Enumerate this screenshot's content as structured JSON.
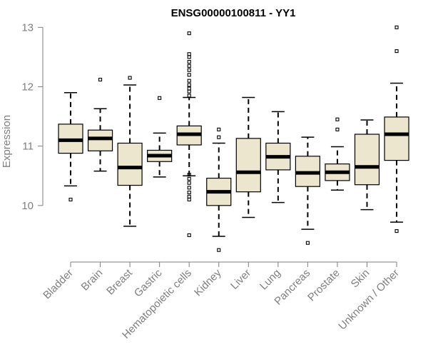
{
  "chart_data": {
    "type": "boxplot",
    "title": "ENSG00000100811 - YY1",
    "xlabel": "",
    "ylabel": "Expression",
    "ylim": [
      9.12,
      13.1
    ],
    "yticks": [
      10,
      11,
      12,
      13
    ],
    "box_fill": "#ede6cf",
    "categories": [
      "Bladder",
      "Brain",
      "Breast",
      "Gastric",
      "Hematopoietic cells",
      "Kidney",
      "Liver",
      "Lung",
      "Pancreas",
      "Prostate",
      "Skin",
      "Unknown / Other"
    ],
    "series": [
      {
        "name": "Bladder",
        "whisker_low": 10.33,
        "q1": 10.88,
        "median": 11.1,
        "q3": 11.37,
        "whisker_high": 11.9,
        "outliers": [
          10.1
        ]
      },
      {
        "name": "Brain",
        "whisker_low": 10.58,
        "q1": 10.92,
        "median": 11.13,
        "q3": 11.27,
        "whisker_high": 11.63,
        "outliers": [
          12.12
        ]
      },
      {
        "name": "Breast",
        "whisker_low": 9.65,
        "q1": 10.34,
        "median": 10.64,
        "q3": 11.05,
        "whisker_high": 12.03,
        "outliers": [
          12.15
        ]
      },
      {
        "name": "Gastric",
        "whisker_low": 10.48,
        "q1": 10.74,
        "median": 10.84,
        "q3": 10.93,
        "whisker_high": 11.22,
        "outliers": [
          11.81
        ]
      },
      {
        "name": "Hematopoietic cells",
        "whisker_low": 10.5,
        "q1": 11.02,
        "median": 11.2,
        "q3": 11.34,
        "whisker_high": 11.82,
        "outliers": [
          9.5,
          10.1,
          10.15,
          10.22,
          10.3,
          10.38,
          10.45,
          10.52,
          11.85,
          11.92,
          11.97,
          12.03,
          12.1,
          12.2,
          12.28,
          12.35,
          12.42,
          12.5,
          12.55,
          12.9
        ]
      },
      {
        "name": "Kidney",
        "whisker_low": 9.48,
        "q1": 10.0,
        "median": 10.23,
        "q3": 10.46,
        "whisker_high": 11.05,
        "outliers": [
          9.25,
          11.15,
          11.28
        ]
      },
      {
        "name": "Liver",
        "whisker_low": 9.8,
        "q1": 10.23,
        "median": 10.56,
        "q3": 11.13,
        "whisker_high": 11.82,
        "outliers": []
      },
      {
        "name": "Lung",
        "whisker_low": 10.05,
        "q1": 10.6,
        "median": 10.82,
        "q3": 11.05,
        "whisker_high": 11.58,
        "outliers": []
      },
      {
        "name": "Pancreas",
        "whisker_low": 9.6,
        "q1": 10.32,
        "median": 10.55,
        "q3": 10.83,
        "whisker_high": 11.15,
        "outliers": [
          9.37
        ]
      },
      {
        "name": "Prostate",
        "whisker_low": 10.26,
        "q1": 10.42,
        "median": 10.56,
        "q3": 10.7,
        "whisker_high": 10.99,
        "outliers": [
          11.28,
          11.45
        ]
      },
      {
        "name": "Skin",
        "whisker_low": 9.93,
        "q1": 10.35,
        "median": 10.65,
        "q3": 11.2,
        "whisker_high": 11.44,
        "outliers": []
      },
      {
        "name": "Unknown / Other",
        "whisker_low": 9.72,
        "q1": 10.76,
        "median": 11.2,
        "q3": 11.49,
        "whisker_high": 12.06,
        "outliers": [
          9.57,
          12.6,
          13.0
        ]
      }
    ]
  }
}
